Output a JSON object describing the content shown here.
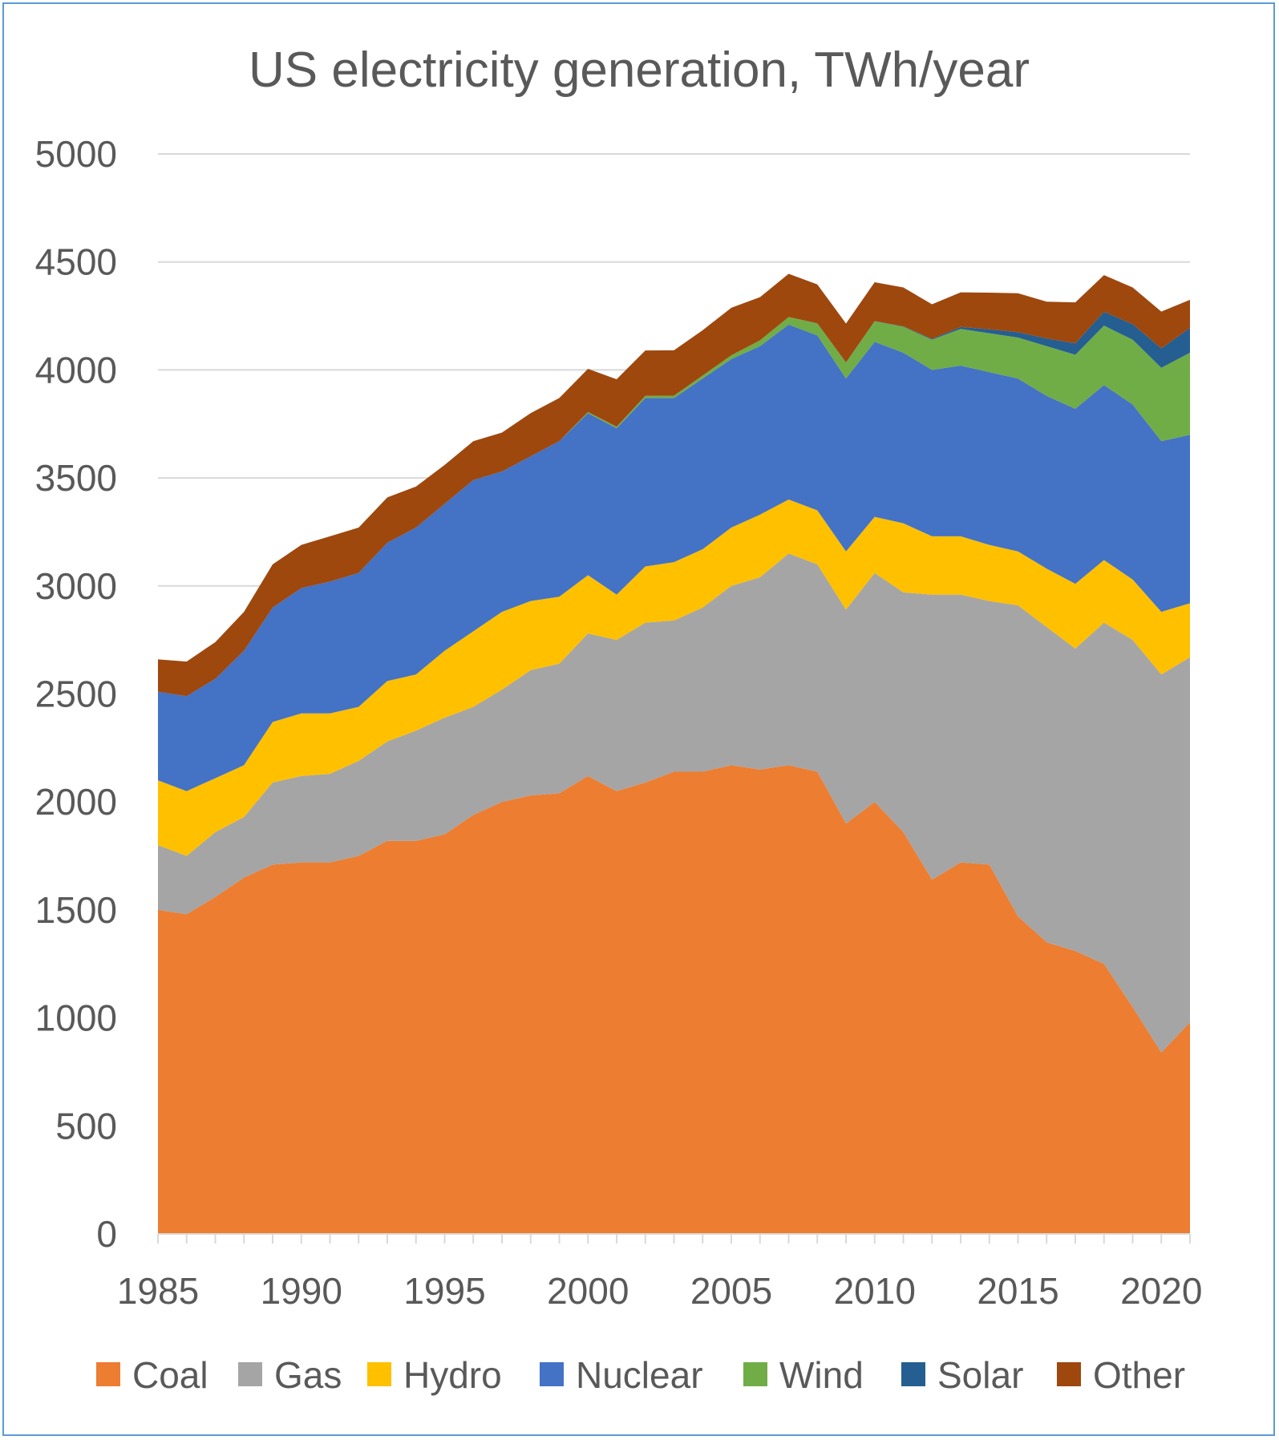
{
  "chart_data": {
    "type": "area",
    "stacked": true,
    "title": "US electricity generation, TWh/year",
    "xlabel": "",
    "ylabel": "",
    "x": [
      1985,
      1986,
      1987,
      1988,
      1989,
      1990,
      1991,
      1992,
      1993,
      1994,
      1995,
      1996,
      1997,
      1998,
      1999,
      2000,
      2001,
      2002,
      2003,
      2004,
      2005,
      2006,
      2007,
      2008,
      2009,
      2010,
      2011,
      2012,
      2013,
      2014,
      2015,
      2016,
      2017,
      2018,
      2019,
      2020,
      2021
    ],
    "x_ticks": [
      1985,
      1990,
      1995,
      2000,
      2005,
      2010,
      2015,
      2020
    ],
    "y_ticks": [
      0,
      500,
      1000,
      1500,
      2000,
      2500,
      3000,
      3500,
      4000,
      4500,
      5000
    ],
    "ylim": [
      0,
      5000
    ],
    "xlim": [
      1985,
      2021
    ],
    "grid": true,
    "legend_position": "bottom",
    "series": [
      {
        "name": "Coal",
        "color": "#ed7d31",
        "values": [
          1500,
          1480,
          1560,
          1650,
          1710,
          1720,
          1720,
          1750,
          1820,
          1820,
          1850,
          1940,
          2000,
          2030,
          2040,
          2120,
          2050,
          2090,
          2140,
          2140,
          2170,
          2150,
          2170,
          2140,
          1900,
          2000,
          1860,
          1640,
          1720,
          1710,
          1470,
          1350,
          1310,
          1250,
          1050,
          840,
          980
        ]
      },
      {
        "name": "Gas",
        "color": "#a5a5a5",
        "values": [
          300,
          270,
          300,
          280,
          380,
          400,
          410,
          440,
          460,
          510,
          540,
          500,
          520,
          580,
          600,
          660,
          700,
          740,
          700,
          760,
          830,
          890,
          980,
          960,
          990,
          1060,
          1110,
          1320,
          1240,
          1220,
          1440,
          1460,
          1400,
          1580,
          1700,
          1750,
          1690
        ]
      },
      {
        "name": "Hydro",
        "color": "#ffc000",
        "values": [
          300,
          300,
          250,
          240,
          280,
          290,
          280,
          250,
          280,
          260,
          310,
          350,
          360,
          320,
          310,
          270,
          210,
          260,
          270,
          270,
          270,
          290,
          250,
          250,
          270,
          260,
          320,
          270,
          270,
          260,
          250,
          270,
          300,
          290,
          280,
          290,
          250
        ]
      },
      {
        "name": "Nuclear",
        "color": "#4472c4",
        "values": [
          410,
          440,
          460,
          530,
          530,
          580,
          610,
          620,
          640,
          680,
          680,
          700,
          650,
          670,
          720,
          750,
          770,
          780,
          760,
          790,
          780,
          780,
          810,
          810,
          800,
          810,
          790,
          770,
          790,
          800,
          800,
          800,
          810,
          810,
          810,
          790,
          780
        ]
      },
      {
        "name": "Wind",
        "color": "#70ad47",
        "values": [
          0,
          0,
          0,
          0,
          0,
          0,
          0,
          0,
          0,
          0,
          0,
          0,
          0,
          0,
          0,
          5,
          7,
          10,
          11,
          14,
          18,
          27,
          35,
          55,
          74,
          95,
          120,
          140,
          170,
          180,
          190,
          230,
          250,
          275,
          300,
          340,
          380
        ]
      },
      {
        "name": "Solar",
        "color": "#255e91",
        "values": [
          0,
          0,
          0,
          0,
          0,
          0,
          0,
          0,
          0,
          0,
          0,
          0,
          0,
          0,
          0,
          0,
          0,
          0,
          0,
          0,
          0,
          0,
          0,
          1,
          1,
          1,
          2,
          4,
          9,
          18,
          25,
          36,
          53,
          64,
          72,
          90,
          115
        ]
      },
      {
        "name": "Other",
        "color": "#9e480e",
        "values": [
          150,
          160,
          170,
          180,
          200,
          200,
          210,
          210,
          210,
          190,
          180,
          180,
          180,
          200,
          200,
          200,
          220,
          210,
          210,
          210,
          220,
          200,
          200,
          180,
          180,
          180,
          180,
          160,
          160,
          170,
          180,
          170,
          190,
          170,
          170,
          170,
          130
        ]
      }
    ]
  }
}
